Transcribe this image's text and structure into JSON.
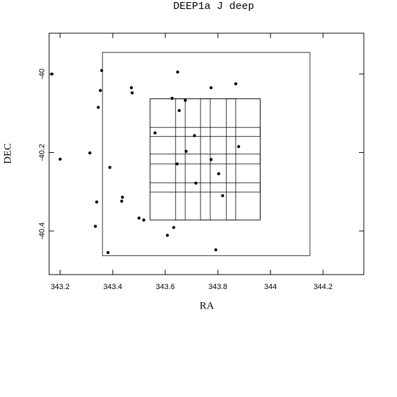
{
  "chart_data": {
    "type": "scatter",
    "title": "DEEP1a J deep",
    "x_label": "RA",
    "y_label": "DEC",
    "color": "#000000",
    "x": [
      343.168,
      343.2,
      343.358,
      343.353,
      343.345,
      343.313,
      343.389,
      343.339,
      343.334,
      343.437,
      343.434,
      343.471,
      343.474,
      343.382,
      343.5,
      343.518,
      343.647,
      343.626,
      343.653,
      343.676,
      343.561,
      343.711,
      343.679,
      343.645,
      343.716,
      343.774,
      343.774,
      343.803,
      343.818,
      343.879,
      343.868,
      343.632,
      343.608,
      343.792
    ],
    "y": [
      -40.0,
      -40.217,
      -39.991,
      -40.042,
      -40.085,
      -40.201,
      -40.238,
      -40.326,
      -40.388,
      -40.314,
      -40.324,
      -40.035,
      -40.048,
      -40.455,
      -40.367,
      -40.372,
      -39.995,
      -40.062,
      -40.093,
      -40.067,
      -40.15,
      -40.157,
      -40.197,
      -40.229,
      -40.278,
      -40.035,
      -40.218,
      -40.254,
      -40.31,
      -40.185,
      -40.025,
      -40.391,
      -40.411,
      -40.448
    ],
    "rectangles": [
      {
        "x": [
          343.361,
          344.15
        ],
        "y": [
          -40.463,
          -39.945
        ]
      },
      {
        "x": [
          343.542,
          343.676
        ],
        "y": [
          -40.372,
          -40.063
        ]
      },
      {
        "x": [
          343.639,
          343.771
        ],
        "y": [
          -40.372,
          -40.063
        ]
      },
      {
        "x": [
          343.734,
          343.868
        ],
        "y": [
          -40.372,
          -40.063
        ]
      },
      {
        "x": [
          343.832,
          343.961
        ],
        "y": [
          -40.372,
          -40.063
        ]
      },
      {
        "x": [
          343.542,
          343.961
        ],
        "y": [
          -40.159,
          -40.063
        ]
      },
      {
        "x": [
          343.542,
          343.961
        ],
        "y": [
          -40.229,
          -40.136
        ]
      },
      {
        "x": [
          343.542,
          343.961
        ],
        "y": [
          -40.301,
          -40.204
        ]
      },
      {
        "x": [
          343.542,
          343.961
        ],
        "y": [
          -40.372,
          -40.277
        ]
      }
    ],
    "xlim": [
      343.158,
      344.355
    ],
    "ylim": [
      -40.511,
      -39.896
    ],
    "xticks": [
      343.2,
      343.4,
      343.6,
      343.8,
      344,
      344.2
    ],
    "yticks": [
      -40,
      -40.2,
      -40.4
    ]
  }
}
